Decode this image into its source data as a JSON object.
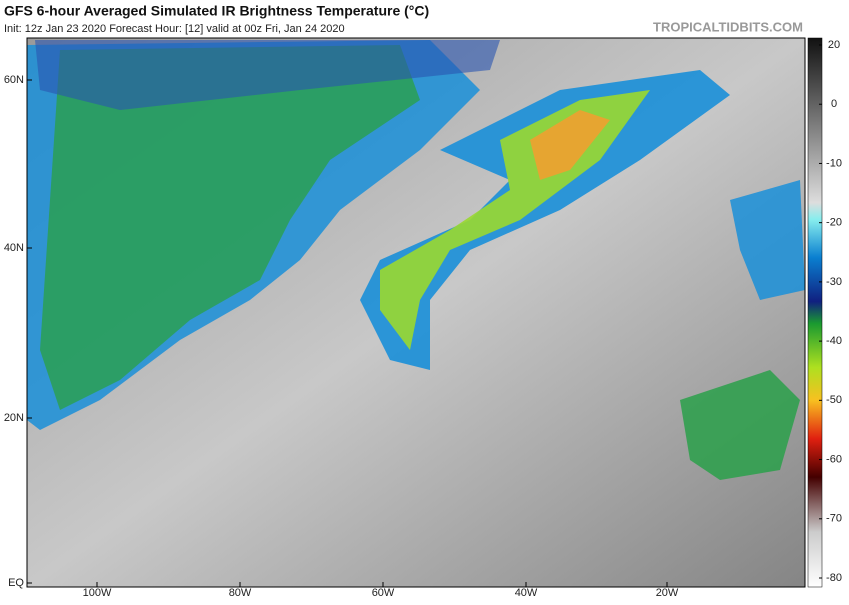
{
  "header": {
    "title": "GFS 6-hour Averaged Simulated IR Brightness Temperature (°C)",
    "subtitle": "Init: 12z Jan 23 2020   Forecast Hour: [12]   valid at 00z Fri, Jan 24 2020",
    "credit": "TROPICALTIDBITS.COM"
  },
  "map": {
    "lat_labels": [
      "60N",
      "40N",
      "20N",
      "EQ"
    ],
    "lon_labels": [
      "100W",
      "80W",
      "60W",
      "40W",
      "20W"
    ]
  },
  "colorbar": {
    "ticks": [
      20,
      0,
      -10,
      -20,
      -30,
      -40,
      -50,
      -60,
      -70,
      -80
    ]
  }
}
